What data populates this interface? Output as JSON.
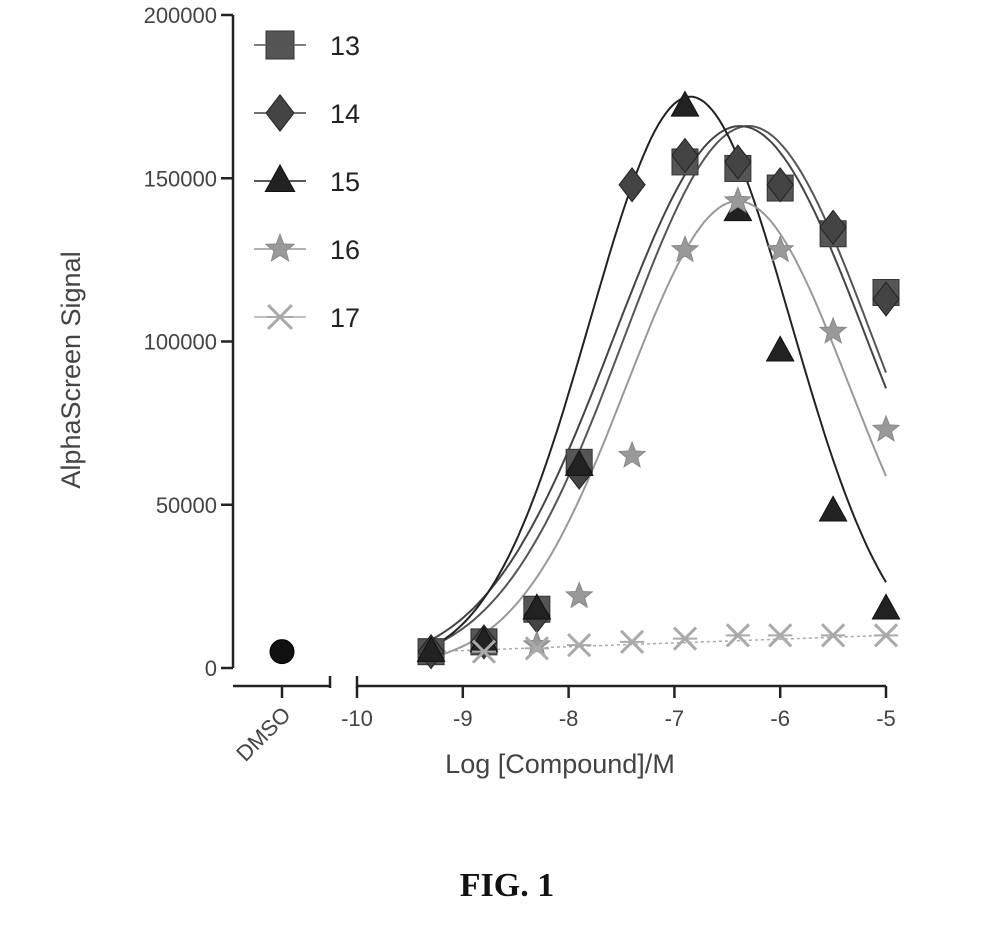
{
  "chart_data": {
    "type": "scatter",
    "xlabel": "Log [Compound]/M",
    "ylabel": "AlphaScreen Signal",
    "xlim": [
      -10,
      -5
    ],
    "ylim": [
      0,
      200000
    ],
    "y_ticks": [
      "0",
      "50000",
      "100000",
      "150000",
      "200000"
    ],
    "x_ticks": [
      "-10",
      "-9",
      "-8",
      "-7",
      "-6",
      "-5"
    ],
    "x_tick_values": [
      -10,
      -9,
      -8,
      -7,
      -6,
      -5
    ],
    "control": {
      "label": "DMSO",
      "value": 5000,
      "marker": "circle",
      "color": "#111111"
    },
    "legend_position": "top-left",
    "grid": false,
    "series": [
      {
        "name": "13",
        "marker": "square",
        "color": "#555555",
        "x": [
          -9.3,
          -8.8,
          -8.3,
          -7.9,
          -6.9,
          -6.4,
          -6.0,
          -5.5,
          -5.0
        ],
        "y": [
          5000,
          8000,
          18000,
          63000,
          155000,
          153000,
          147000,
          133000,
          115000
        ]
      },
      {
        "name": "14",
        "marker": "diamond",
        "color": "#444444",
        "x": [
          -9.3,
          -8.8,
          -8.3,
          -7.9,
          -7.4,
          -6.9,
          -6.4,
          -6.0,
          -5.5,
          -5.0
        ],
        "y": [
          5000,
          8000,
          16000,
          60000,
          148000,
          157000,
          155000,
          148000,
          135000,
          113000
        ]
      },
      {
        "name": "15",
        "marker": "triangle",
        "color": "#222222",
        "x": [
          -9.3,
          -8.8,
          -8.3,
          -7.9,
          -6.9,
          -6.4,
          -6.0,
          -5.5,
          -5.0
        ],
        "y": [
          5000,
          8000,
          18000,
          62000,
          172000,
          140000,
          97000,
          48000,
          18000
        ]
      },
      {
        "name": "16",
        "marker": "star",
        "color": "#999999",
        "x": [
          -8.3,
          -7.9,
          -7.4,
          -6.9,
          -6.4,
          -6.0,
          -5.5,
          -5.0
        ],
        "y": [
          7000,
          22000,
          65000,
          128000,
          143000,
          128000,
          103000,
          73000
        ]
      },
      {
        "name": "17",
        "marker": "x",
        "color": "#aaaaaa",
        "x": [
          -8.8,
          -8.3,
          -7.9,
          -7.4,
          -6.9,
          -6.4,
          -6.0,
          -5.5,
          -5.0
        ],
        "y": [
          5000,
          6000,
          7000,
          8000,
          9000,
          10000,
          10000,
          10000,
          10000
        ]
      }
    ],
    "fit_curves": [
      {
        "series": "13",
        "model": "gaussian",
        "peak": 166000,
        "center": -6.3,
        "width": 1.18,
        "base": 0
      },
      {
        "series": "14",
        "model": "gaussian",
        "peak": 166000,
        "center": -6.38,
        "width": 1.2,
        "base": 0
      },
      {
        "series": "15",
        "model": "gaussian",
        "peak": 175000,
        "center": -6.85,
        "width": 0.95,
        "base": 0
      },
      {
        "series": "16",
        "model": "gaussian",
        "peak": 143000,
        "center": -6.4,
        "width": 1.05,
        "base": 0
      },
      {
        "series": "17",
        "model": "linear",
        "y_start": 5000,
        "y_end": 10000
      }
    ]
  },
  "figure": {
    "caption": "FIG. 1"
  }
}
